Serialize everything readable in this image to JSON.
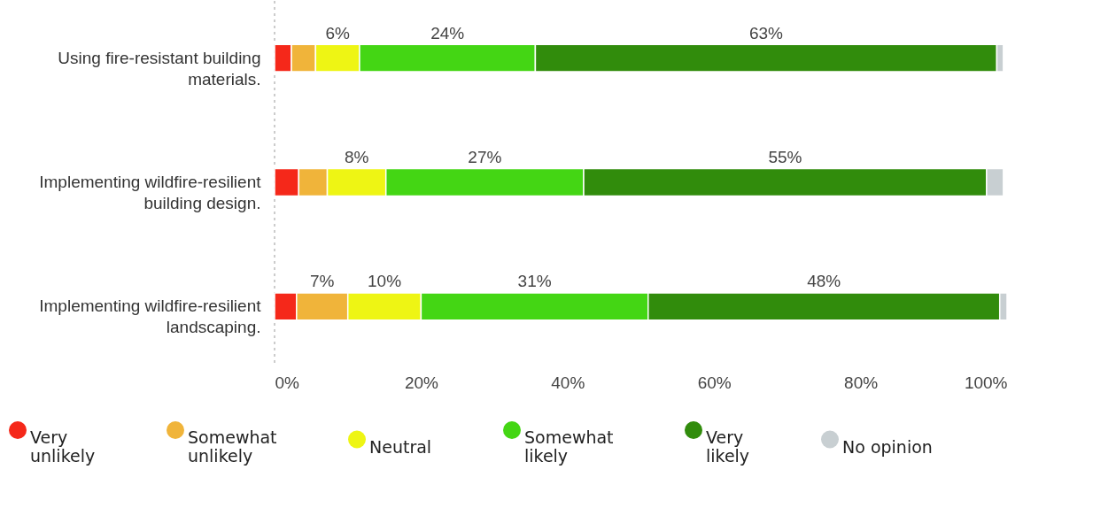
{
  "chart_data": {
    "type": "bar",
    "orientation": "horizontal",
    "stacked": true,
    "categories": [
      "Using fire-resistant building materials.",
      "Implementing wildfire-resilient building design.",
      "Implementing wildfire-resilient landscaping."
    ],
    "series": [
      {
        "name": "Very unlikely",
        "color": "#f5281a",
        "values": [
          2.3,
          3.3,
          3
        ],
        "value_labels": [
          null,
          null,
          null
        ]
      },
      {
        "name": "Somewhat unlikely",
        "color": "#f0b43a",
        "values": [
          3.3,
          3.9,
          7
        ],
        "value_labels": [
          null,
          null,
          "7%"
        ]
      },
      {
        "name": "Neutral",
        "color": "#eef514",
        "values": [
          6,
          8,
          10
        ],
        "value_labels": [
          "6%",
          "8%",
          "10%"
        ]
      },
      {
        "name": "Somewhat likely",
        "color": "#44d614",
        "values": [
          24,
          27,
          31
        ],
        "value_labels": [
          "24%",
          "27%",
          "31%"
        ]
      },
      {
        "name": "Very likely",
        "color": "#318c0c",
        "values": [
          63,
          55,
          48
        ],
        "value_labels": [
          "63%",
          "55%",
          "48%"
        ]
      },
      {
        "name": "No opinion",
        "color": "#c8cfd2",
        "values": [
          0.9,
          2.3,
          1
        ],
        "value_labels": [
          null,
          null,
          null
        ]
      }
    ],
    "xlim": [
      0,
      100
    ],
    "xticks": [
      {
        "value": 0,
        "label": "0%"
      },
      {
        "value": 20,
        "label": "20%"
      },
      {
        "value": 40,
        "label": "40%"
      },
      {
        "value": 60,
        "label": "60%"
      },
      {
        "value": 80,
        "label": "80%"
      },
      {
        "value": 100,
        "label": "100%"
      }
    ],
    "grid": false,
    "legend": "bottom"
  }
}
